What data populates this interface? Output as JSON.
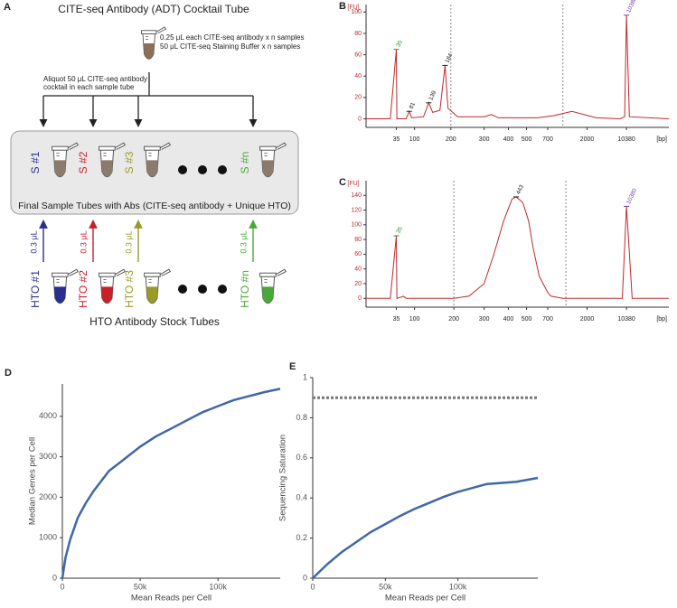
{
  "diagram": {
    "panel": "A",
    "title": "CITE-seq Antibody (ADT) Cocktail Tube",
    "cocktail_lines": [
      "0.25 μL each CITE-seq antibody x n samples",
      "50 μL CITE-seq Staining Buffer x n samples"
    ],
    "aliquot_lines": [
      "Aliquot 50 μL CITE-seq antibody",
      "cocktail in each sample tube"
    ],
    "sample_tubes": [
      "S #1",
      "S #2",
      "S #3",
      "S #n"
    ],
    "box_label": "Final Sample Tubes with Abs (CITE-seq antibody + Unique HTO)",
    "volumes": [
      "0.3 μL",
      "0.3 μL",
      "0.3 μL",
      "0.3 μL"
    ],
    "hto_tubes": [
      "HTO #1",
      "HTO #2",
      "HTO #3",
      "HTO #n"
    ],
    "stock_label": "HTO Antibody Stock Tubes"
  },
  "chart_data": [
    {
      "type": "electropherogram",
      "panel": "B",
      "ylabel": "[FU]",
      "xlabel": "[bp]",
      "color": "#c0282d",
      "x": [
        25,
        33,
        35,
        37,
        70,
        81,
        90,
        125,
        139,
        150,
        170,
        184,
        192,
        220,
        300,
        330,
        360,
        600,
        900,
        1500,
        2200,
        4000,
        9000,
        10000,
        10380,
        10700,
        15000
      ],
      "values": [
        0,
        0,
        65,
        0,
        0,
        7,
        1,
        2,
        15,
        6,
        8,
        50,
        10,
        2,
        2,
        4,
        1,
        1,
        3,
        7,
        3,
        1,
        0,
        2,
        97,
        2,
        0
      ],
      "xlim": [
        25,
        15000
      ],
      "ylim": [
        -8,
        107
      ],
      "xticks": [
        35,
        100,
        200,
        300,
        400,
        500,
        700,
        2000,
        10380
      ],
      "yticks": [
        0,
        20,
        40,
        60,
        80,
        100
      ],
      "peaks": [
        {
          "x": 35,
          "y": 65,
          "color": "#2e8b2e"
        },
        {
          "x": 81,
          "y": 7,
          "color": "#222222"
        },
        {
          "x": 139,
          "y": 15,
          "color": "#222222"
        },
        {
          "x": 184,
          "y": 50,
          "color": "#222222"
        },
        {
          "x": 10380,
          "y": 97,
          "color": "#7a3fb0"
        }
      ],
      "markers": [
        200,
        1200
      ]
    },
    {
      "type": "electropherogram",
      "panel": "C",
      "ylabel": "[FU]",
      "xlabel": "[bp]",
      "color": "#c0282d",
      "x": [
        25,
        33,
        35,
        37,
        55,
        60,
        70,
        200,
        250,
        300,
        340,
        380,
        420,
        443,
        480,
        520,
        560,
        620,
        700,
        800,
        1200,
        9500,
        10380,
        11000,
        15000
      ],
      "values": [
        0,
        0,
        85,
        0,
        2,
        3,
        0,
        0,
        3,
        20,
        60,
        105,
        135,
        138,
        130,
        105,
        70,
        30,
        8,
        3,
        0,
        0,
        125,
        0,
        0
      ],
      "xlim": [
        25,
        15000
      ],
      "ylim": [
        -12,
        160
      ],
      "xticks": [
        35,
        100,
        200,
        300,
        400,
        500,
        700,
        2000,
        10380
      ],
      "yticks": [
        0,
        20,
        40,
        60,
        80,
        100,
        120,
        140
      ],
      "peaks": [
        {
          "x": 35,
          "y": 85,
          "color": "#2e8b2e"
        },
        {
          "x": 443,
          "y": 138,
          "color": "#222222"
        },
        {
          "x": 10380,
          "y": 125,
          "color": "#7a3fb0"
        }
      ],
      "markers": [
        200,
        1300
      ]
    },
    {
      "type": "line",
      "panel": "D",
      "xlabel": "Mean Reads per Cell",
      "ylabel": "Median Genes per Cell",
      "color": "#3f67a8",
      "x": [
        0,
        2000,
        5000,
        10000,
        15000,
        20000,
        30000,
        40000,
        50000,
        60000,
        70000,
        80000,
        90000,
        100000,
        110000,
        120000,
        130000,
        140000
      ],
      "values": [
        0,
        500,
        950,
        1500,
        1850,
        2150,
        2650,
        2950,
        3250,
        3500,
        3700,
        3900,
        4100,
        4250,
        4400,
        4500,
        4600,
        4680
      ],
      "xlim": [
        0,
        140000
      ],
      "ylim": [
        0,
        4800
      ],
      "xticks": [
        0,
        {
          "value": 50000,
          "label": "50k"
        },
        {
          "value": 100000,
          "label": "100k"
        }
      ],
      "yticks": [
        0,
        1000,
        2000,
        3000,
        4000
      ]
    },
    {
      "type": "line",
      "panel": "E",
      "xlabel": "Mean Reads per Cell",
      "ylabel": "Sequencing Saturation",
      "color": "#3f67a8",
      "x": [
        0,
        10000,
        20000,
        30000,
        40000,
        50000,
        60000,
        70000,
        80000,
        90000,
        100000,
        120000,
        140000,
        155000
      ],
      "values": [
        0,
        0.07,
        0.13,
        0.18,
        0.23,
        0.27,
        0.31,
        0.345,
        0.375,
        0.405,
        0.43,
        0.47,
        0.48,
        0.5
      ],
      "xlim": [
        0,
        155000
      ],
      "ylim": [
        0,
        1
      ],
      "xticks": [
        0,
        {
          "value": 50000,
          "label": "50k"
        },
        {
          "value": 100000,
          "label": "100k"
        }
      ],
      "yticks": [
        0,
        0.2,
        0.4,
        0.6,
        0.8,
        1
      ],
      "reference_line": 0.9
    }
  ]
}
